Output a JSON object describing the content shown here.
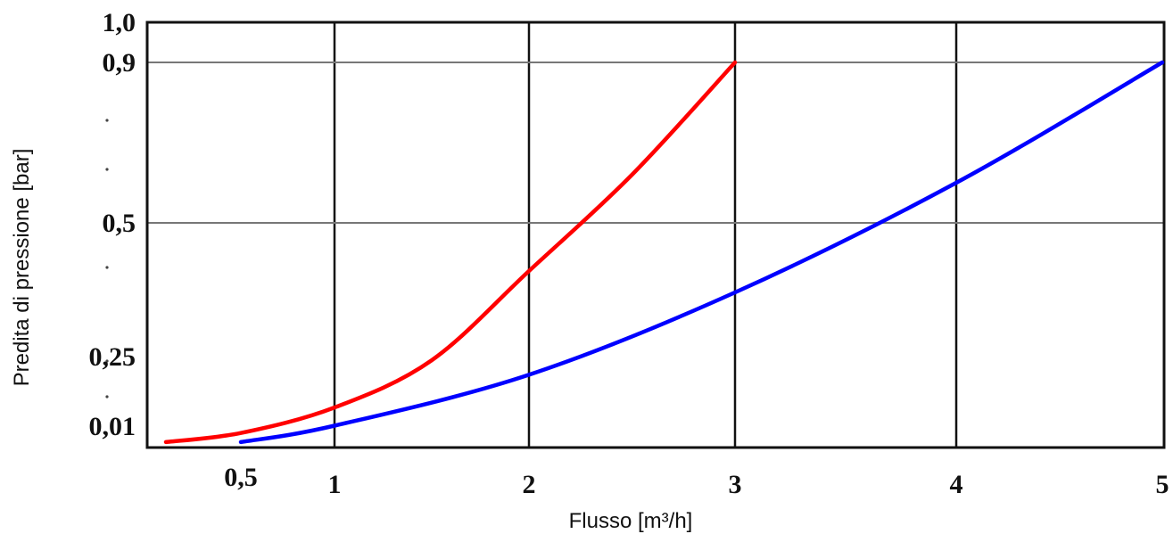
{
  "chart_data": {
    "type": "line",
    "xlabel": "Flusso [m³/h]",
    "ylabel": "Predita di pressione [bar]",
    "x_tick_labels": [
      "0,5",
      "1",
      "2",
      "3",
      "4",
      "5"
    ],
    "y_tick_labels": [
      "1,0",
      "0,9",
      "0,5",
      "0,25",
      "0,01"
    ],
    "grid": true,
    "series": [
      {
        "color": "#ff0000",
        "x": [
          0.1,
          0.5,
          1.0,
          1.5,
          2.0,
          2.5,
          3.0
        ],
        "y": [
          0.015,
          0.04,
          0.11,
          0.24,
          0.41,
          0.62,
          0.9
        ]
      },
      {
        "color": "#0000ff",
        "x": [
          0.5,
          1.0,
          2.0,
          3.0,
          4.0,
          5.0
        ],
        "y": [
          0.015,
          0.06,
          0.2,
          0.37,
          0.6,
          0.9
        ]
      }
    ]
  }
}
